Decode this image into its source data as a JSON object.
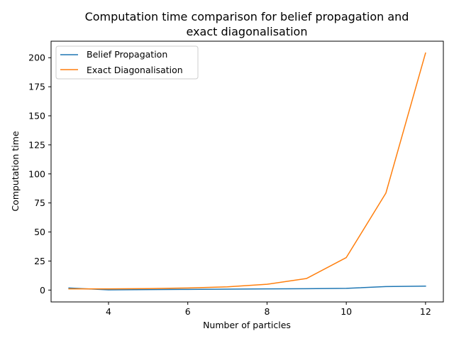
{
  "chart_data": {
    "type": "line",
    "title_line1": "Computation time comparison for belief propagation and",
    "title_line2": "exact diagonalisation",
    "xlabel": "Number of particles",
    "ylabel": "Computation time",
    "xlim": [
      2.55,
      12.45
    ],
    "ylim": [
      -10.2,
      214.2
    ],
    "xticks": [
      4,
      6,
      8,
      10,
      12
    ],
    "yticks": [
      0,
      25,
      50,
      75,
      100,
      125,
      150,
      175,
      200
    ],
    "grid": false,
    "legend_position": "upper-left",
    "x": [
      3,
      4,
      5,
      6,
      7,
      8,
      9,
      10,
      11,
      12
    ],
    "series": [
      {
        "name": "Belief Propagation",
        "color": "#1f77b4",
        "values": [
          1.8,
          0.2,
          0.4,
          0.6,
          0.8,
          1.0,
          1.2,
          1.5,
          3.0,
          3.4
        ]
      },
      {
        "name": "Exact Diagonalisation",
        "color": "#ff7f0e",
        "values": [
          1.0,
          1.0,
          1.3,
          1.8,
          2.8,
          5.0,
          10.0,
          28.0,
          83.5,
          204.0
        ]
      }
    ]
  }
}
